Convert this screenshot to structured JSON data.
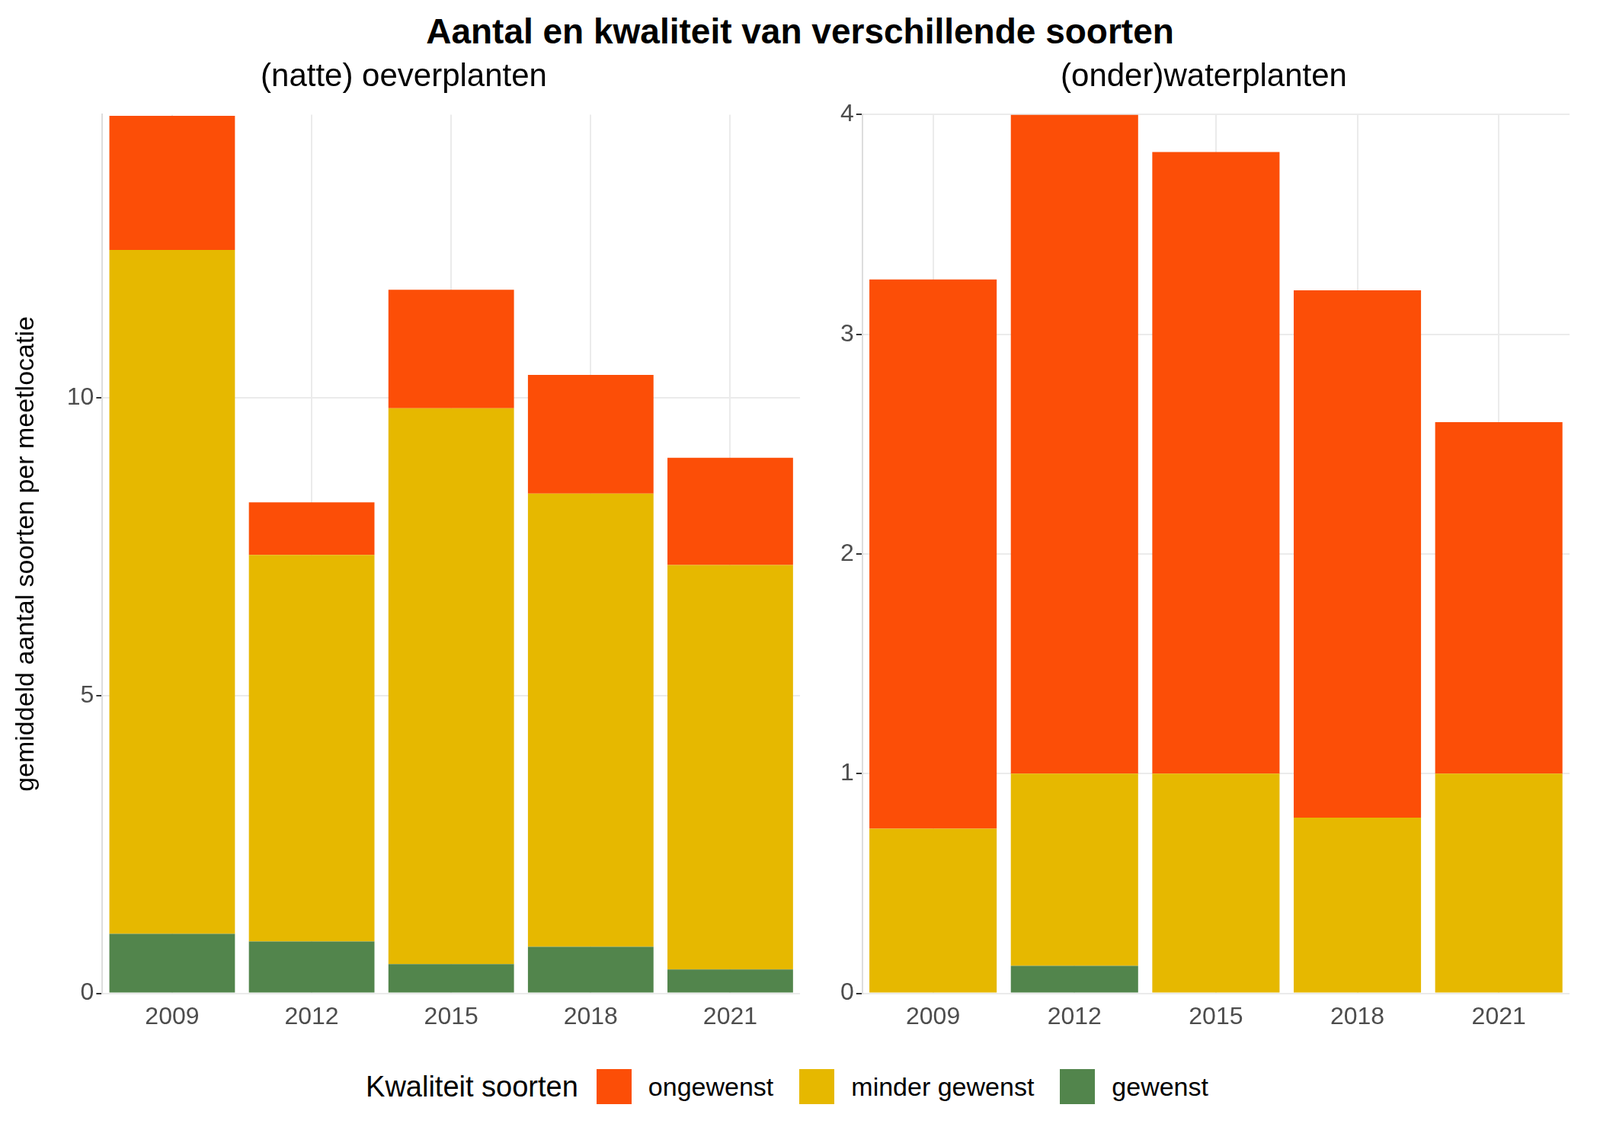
{
  "title": "Aantal en kwaliteit van verschillende soorten",
  "legend_title": "Kwaliteit soorten",
  "legend": "bottom",
  "chart_data": [
    {
      "type": "bar",
      "title": "(natte) oeverplanten",
      "ylabel": "gemiddeld aantal soorten per meetlocatie",
      "stacked": true,
      "grid": true,
      "categories": [
        "2009",
        "2012",
        "2015",
        "2018",
        "2021"
      ],
      "series": [
        {
          "name": "ongewenst",
          "color": "#FC4E07",
          "values": [
            2.25,
            0.88,
            1.99,
            1.99,
            1.8
          ]
        },
        {
          "name": "minder gewenst",
          "color": "#E6B800",
          "values": [
            11.48,
            6.49,
            9.33,
            7.61,
            6.79
          ]
        },
        {
          "name": "gewenst",
          "color": "#52854C",
          "values": [
            1.0,
            0.87,
            0.49,
            0.78,
            0.4
          ]
        }
      ],
      "ylim": [
        0,
        14.75
      ],
      "yticks": [
        0,
        5,
        10
      ]
    },
    {
      "type": "bar",
      "title": "(onder)waterplanten",
      "stacked": true,
      "grid": true,
      "categories": [
        "2009",
        "2012",
        "2015",
        "2018",
        "2021"
      ],
      "series": [
        {
          "name": "ongewenst",
          "color": "#FC4E07",
          "values": [
            2.5,
            3.0,
            2.83,
            2.4,
            1.6
          ]
        },
        {
          "name": "minder gewenst",
          "color": "#E6B800",
          "values": [
            0.75,
            0.875,
            1.0,
            0.8,
            1.0
          ]
        },
        {
          "name": "gewenst",
          "color": "#52854C",
          "values": [
            0,
            0.125,
            0,
            0,
            0
          ]
        }
      ],
      "ylim": [
        0,
        4
      ],
      "yticks": [
        0,
        1,
        2,
        3,
        4
      ]
    }
  ]
}
